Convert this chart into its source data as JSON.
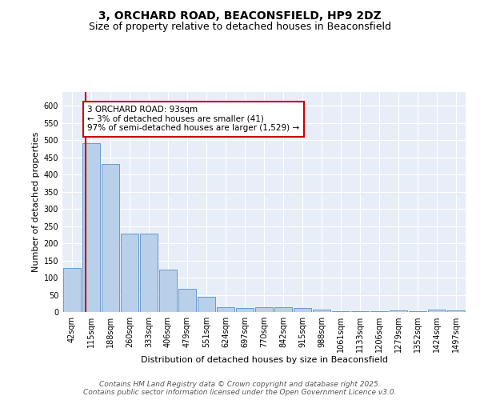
{
  "title_line1": "3, ORCHARD ROAD, BEACONSFIELD, HP9 2DZ",
  "title_line2": "Size of property relative to detached houses in Beaconsfield",
  "xlabel": "Distribution of detached houses by size in Beaconsfield",
  "ylabel": "Number of detached properties",
  "bar_color": "#b8d0ea",
  "bar_edge_color": "#5b8fc9",
  "categories": [
    "42sqm",
    "115sqm",
    "188sqm",
    "260sqm",
    "333sqm",
    "406sqm",
    "479sqm",
    "551sqm",
    "624sqm",
    "697sqm",
    "770sqm",
    "842sqm",
    "915sqm",
    "988sqm",
    "1061sqm",
    "1133sqm",
    "1206sqm",
    "1279sqm",
    "1352sqm",
    "1424sqm",
    "1497sqm"
  ],
  "values": [
    128,
    490,
    430,
    228,
    228,
    123,
    67,
    44,
    14,
    12,
    15,
    15,
    11,
    7,
    2,
    2,
    2,
    5,
    2,
    7,
    5
  ],
  "ylim": [
    0,
    640
  ],
  "yticks": [
    0,
    50,
    100,
    150,
    200,
    250,
    300,
    350,
    400,
    450,
    500,
    550,
    600
  ],
  "annotation_text": "3 ORCHARD ROAD: 93sqm\n← 3% of detached houses are smaller (41)\n97% of semi-detached houses are larger (1,529) →",
  "annotation_box_color": "#ffffff",
  "annotation_box_edge": "#cc0000",
  "vline_color": "#cc0000",
  "background_color": "#e8eef7",
  "grid_color": "#ffffff",
  "footer_text": "Contains HM Land Registry data © Crown copyright and database right 2025.\nContains public sector information licensed under the Open Government Licence v3.0.",
  "title_fontsize": 10,
  "subtitle_fontsize": 9,
  "axis_label_fontsize": 8,
  "tick_fontsize": 7,
  "annotation_fontsize": 7.5,
  "footer_fontsize": 6.5
}
